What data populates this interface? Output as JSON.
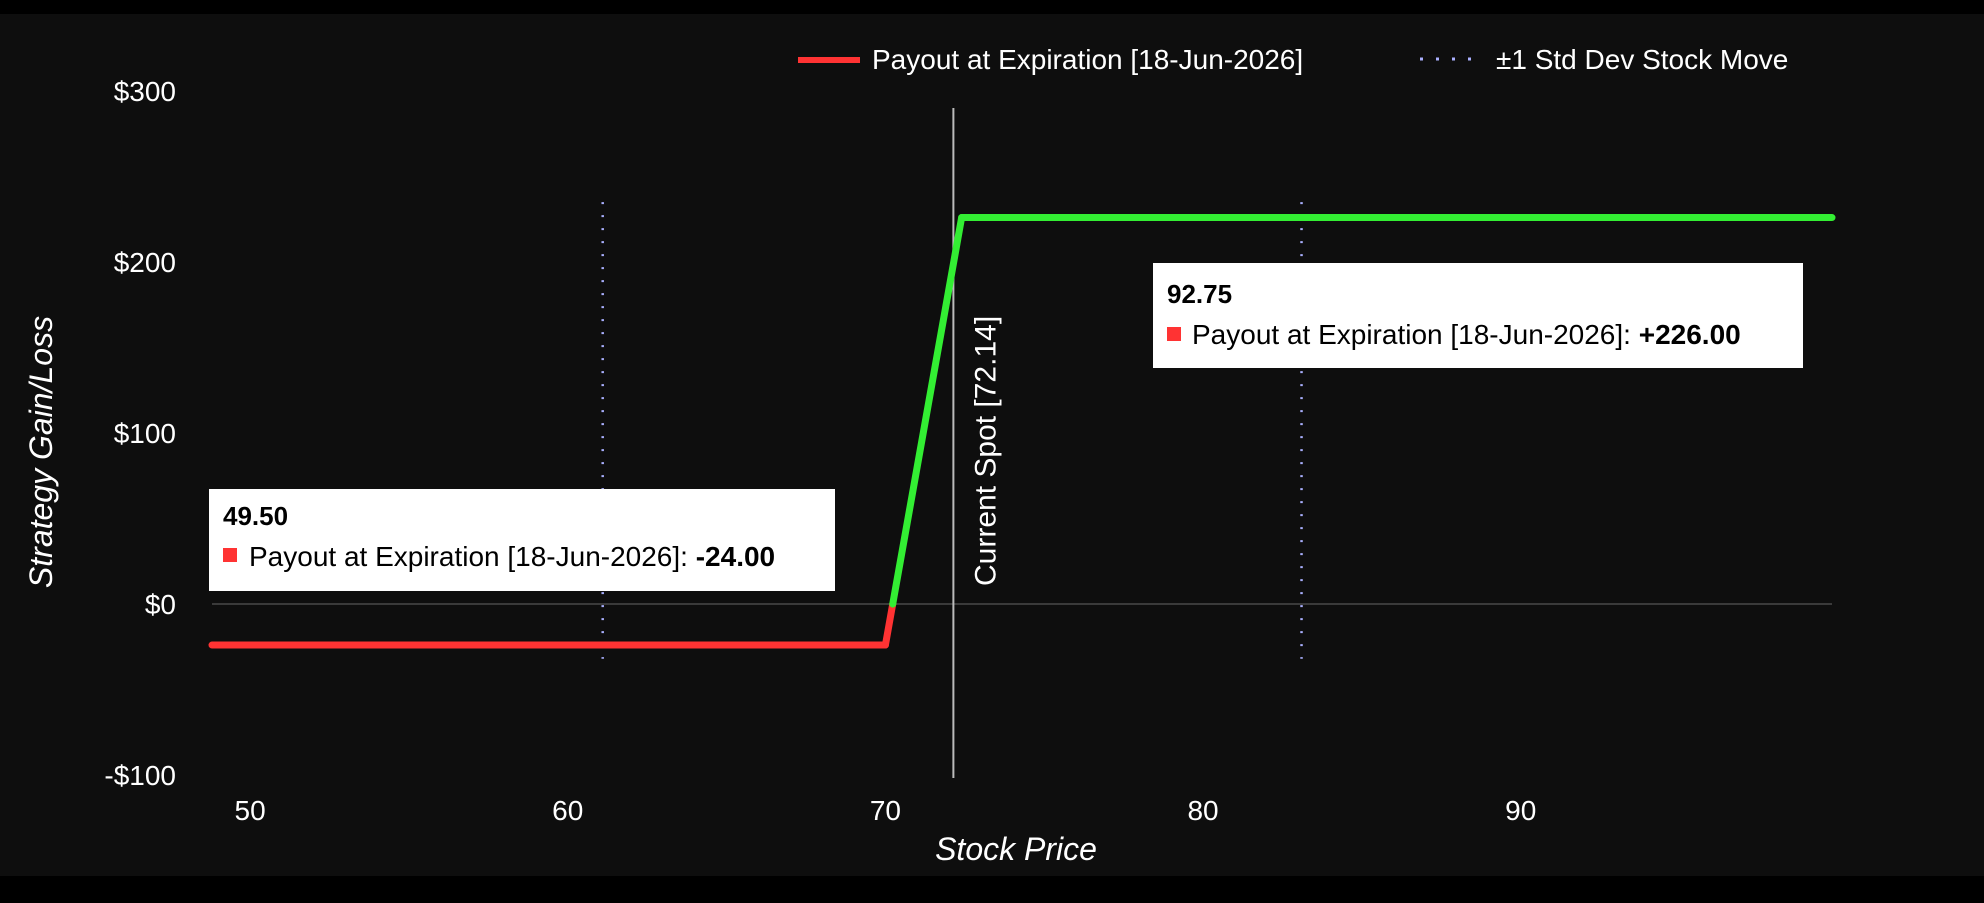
{
  "chart_data": {
    "type": "line",
    "xlabel": "Stock Price",
    "ylabel": "Strategy Gain/Loss",
    "xlim": [
      48.8,
      99.8
    ],
    "ylim": [
      -100,
      300
    ],
    "x_ticks": [
      50,
      60,
      70,
      80,
      90
    ],
    "y_ticks": [
      {
        "value": 300,
        "label": "$300"
      },
      {
        "value": 200,
        "label": "$200"
      },
      {
        "value": 100,
        "label": "$100"
      },
      {
        "value": 0,
        "label": "$0"
      },
      {
        "value": -100,
        "label": "-$100"
      }
    ],
    "grid": false,
    "legend_position": "top-right",
    "series": [
      {
        "name": "Payout at Expiration [18-Jun-2026]",
        "color": "#ff3333",
        "positive_color": "#33ee33",
        "x": [
          48.8,
          70.0,
          72.4,
          99.8
        ],
        "y": [
          -24,
          -24,
          226,
          226
        ]
      }
    ],
    "std_dev": {
      "name": "±1 Std Dev Stock Move",
      "color": "#aab0ff",
      "lines": [
        {
          "x": 61.1,
          "y_from": -32,
          "y_to": 235
        },
        {
          "x": 83.1,
          "y_from": -32,
          "y_to": 235
        }
      ]
    },
    "current_spot": {
      "x": 72.14,
      "label": "Current Spot [72.14]",
      "color": "#bbbbbb"
    },
    "tooltips": [
      {
        "x_label": "49.50",
        "series_label": "Payout at Expiration [18-Jun-2026]",
        "value": "-24.00",
        "marker_color": "#ff3333"
      },
      {
        "x_label": "92.75",
        "series_label": "Payout at Expiration [18-Jun-2026]",
        "value": "+226.00",
        "marker_color": "#ff3333"
      }
    ]
  }
}
